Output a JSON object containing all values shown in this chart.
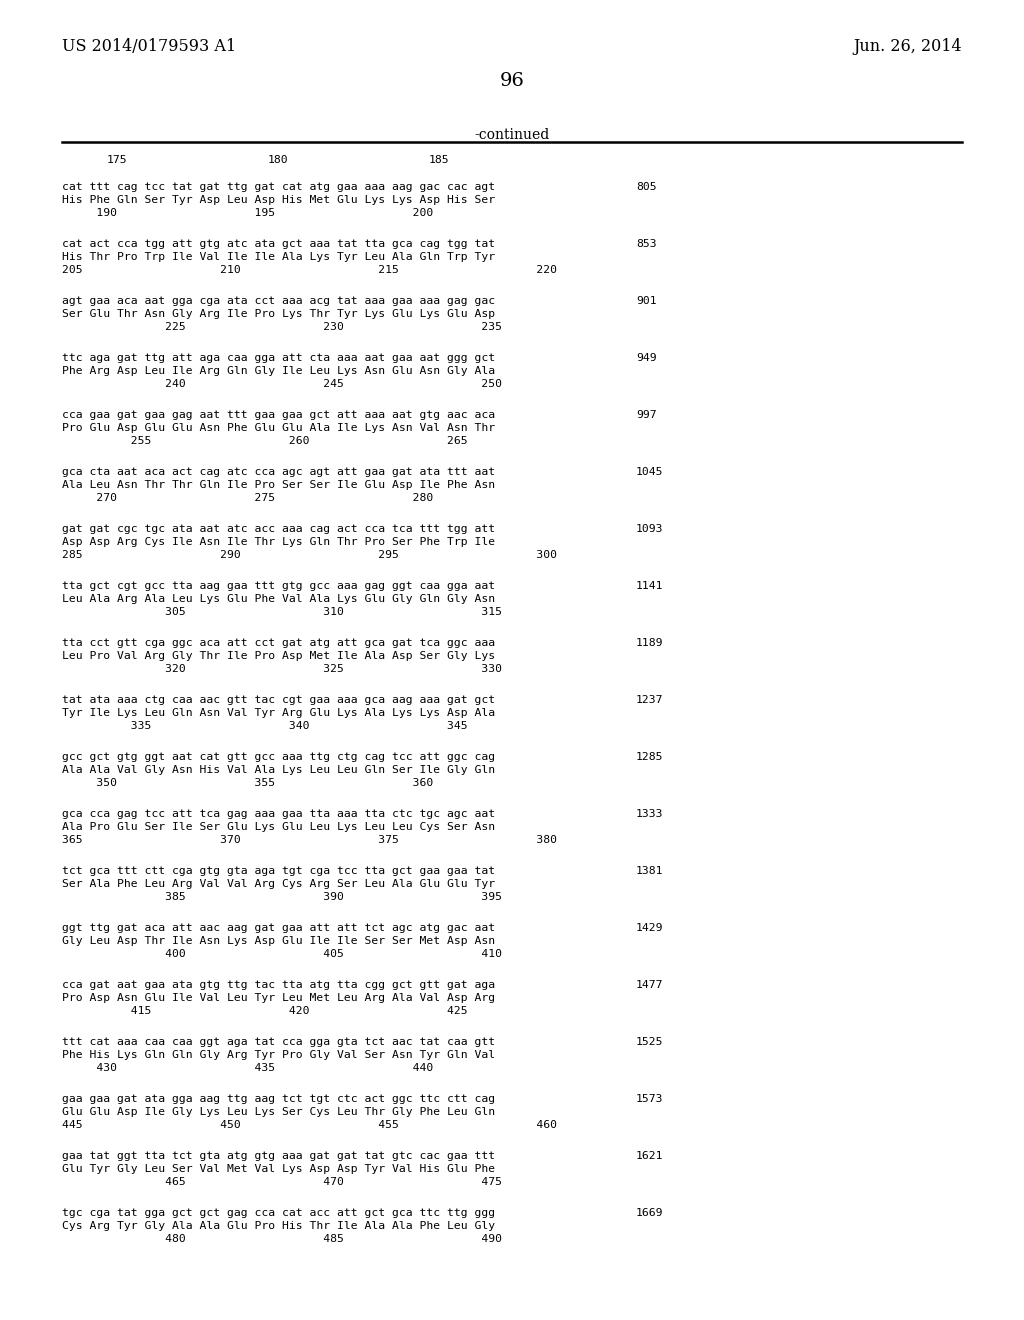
{
  "patent_number": "US 2014/0179593 A1",
  "date": "Jun. 26, 2014",
  "page_number": "96",
  "continued_text": "-continued",
  "background_color": "#ffffff",
  "blocks": [
    {
      "nuc": "cat ttt cag tcc tat gat ttg gat cat atg gaa aaa aag gac cac agt",
      "aa": "His Phe Gln Ser Tyr Asp Leu Asp His Met Glu Lys Lys Asp His Ser",
      "pos": "     190                    195                    200",
      "num": "805"
    },
    {
      "nuc": "cat act cca tgg att gtg atc ata gct aaa tat tta gca cag tgg tat",
      "aa": "His Thr Pro Trp Ile Val Ile Ile Ala Lys Tyr Leu Ala Gln Trp Tyr",
      "pos": "205                    210                    215                    220",
      "num": "853"
    },
    {
      "nuc": "agt gaa aca aat gga cga ata cct aaa acg tat aaa gaa aaa gag gac",
      "aa": "Ser Glu Thr Asn Gly Arg Ile Pro Lys Thr Tyr Lys Glu Lys Glu Asp",
      "pos": "               225                    230                    235",
      "num": "901"
    },
    {
      "nuc": "ttc aga gat ttg att aga caa gga att cta aaa aat gaa aat ggg gct",
      "aa": "Phe Arg Asp Leu Ile Arg Gln Gly Ile Leu Lys Asn Glu Asn Gly Ala",
      "pos": "               240                    245                    250",
      "num": "949"
    },
    {
      "nuc": "cca gaa gat gaa gag aat ttt gaa gaa gct att aaa aat gtg aac aca",
      "aa": "Pro Glu Asp Glu Glu Asn Phe Glu Glu Ala Ile Lys Asn Val Asn Thr",
      "pos": "          255                    260                    265",
      "num": "997"
    },
    {
      "nuc": "gca cta aat aca act cag atc cca agc agt att gaa gat ata ttt aat",
      "aa": "Ala Leu Asn Thr Thr Gln Ile Pro Ser Ser Ile Glu Asp Ile Phe Asn",
      "pos": "     270                    275                    280",
      "num": "1045"
    },
    {
      "nuc": "gat gat cgc tgc ata aat atc acc aaa cag act cca tca ttt tgg att",
      "aa": "Asp Asp Arg Cys Ile Asn Ile Thr Lys Gln Thr Pro Ser Phe Trp Ile",
      "pos": "285                    290                    295                    300",
      "num": "1093"
    },
    {
      "nuc": "tta gct cgt gcc tta aag gaa ttt gtg gcc aaa gag ggt caa gga aat",
      "aa": "Leu Ala Arg Ala Leu Lys Glu Phe Val Ala Lys Glu Gly Gln Gly Asn",
      "pos": "               305                    310                    315",
      "num": "1141"
    },
    {
      "nuc": "tta cct gtt cga ggc aca att cct gat atg att gca gat tca ggc aaa",
      "aa": "Leu Pro Val Arg Gly Thr Ile Pro Asp Met Ile Ala Asp Ser Gly Lys",
      "pos": "               320                    325                    330",
      "num": "1189"
    },
    {
      "nuc": "tat ata aaa ctg caa aac gtt tac cgt gaa aaa gca aag aaa gat gct",
      "aa": "Tyr Ile Lys Leu Gln Asn Val Tyr Arg Glu Lys Ala Lys Lys Asp Ala",
      "pos": "          335                    340                    345",
      "num": "1237"
    },
    {
      "nuc": "gcc gct gtg ggt aat cat gtt gcc aaa ttg ctg cag tcc att ggc cag",
      "aa": "Ala Ala Val Gly Asn His Val Ala Lys Leu Leu Gln Ser Ile Gly Gln",
      "pos": "     350                    355                    360",
      "num": "1285"
    },
    {
      "nuc": "gca cca gag tcc att tca gag aaa gaa tta aaa tta ctc tgc agc aat",
      "aa": "Ala Pro Glu Ser Ile Ser Glu Lys Glu Leu Lys Leu Leu Cys Ser Asn",
      "pos": "365                    370                    375                    380",
      "num": "1333"
    },
    {
      "nuc": "tct gca ttt ctt cga gtg gta aga tgt cga tcc tta gct gaa gaa tat",
      "aa": "Ser Ala Phe Leu Arg Val Val Arg Cys Arg Ser Leu Ala Glu Glu Tyr",
      "pos": "               385                    390                    395",
      "num": "1381"
    },
    {
      "nuc": "ggt ttg gat aca att aac aag gat gaa att att tct agc atg gac aat",
      "aa": "Gly Leu Asp Thr Ile Asn Lys Asp Glu Ile Ile Ser Ser Met Asp Asn",
      "pos": "               400                    405                    410",
      "num": "1429"
    },
    {
      "nuc": "cca gat aat gaa ata gtg ttg tac tta atg tta cgg gct gtt gat aga",
      "aa": "Pro Asp Asn Glu Ile Val Leu Tyr Leu Met Leu Arg Ala Val Asp Arg",
      "pos": "          415                    420                    425",
      "num": "1477"
    },
    {
      "nuc": "ttt cat aaa caa caa ggt aga tat cca gga gta tct aac tat caa gtt",
      "aa": "Phe His Lys Gln Gln Gly Arg Tyr Pro Gly Val Ser Asn Tyr Gln Val",
      "pos": "     430                    435                    440",
      "num": "1525"
    },
    {
      "nuc": "gaa gaa gat ata gga aag ttg aag tct tgt ctc act ggc ttc ctt cag",
      "aa": "Glu Glu Asp Ile Gly Lys Leu Lys Ser Cys Leu Thr Gly Phe Leu Gln",
      "pos": "445                    450                    455                    460",
      "num": "1573"
    },
    {
      "nuc": "gaa tat ggt tta tct gta atg gtg aaa gat gat tat gtc cac gaa ttt",
      "aa": "Glu Tyr Gly Leu Ser Val Met Val Lys Asp Asp Tyr Val His Glu Phe",
      "pos": "               465                    470                    475",
      "num": "1621"
    },
    {
      "nuc": "tgc cga tat gga gct gct gag cca cat acc att gct gca ttc ttg ggg",
      "aa": "Cys Arg Tyr Gly Ala Ala Glu Pro His Thr Ile Ala Ala Phe Leu Gly",
      "pos": "               480                    485                    490",
      "num": "1669"
    }
  ]
}
